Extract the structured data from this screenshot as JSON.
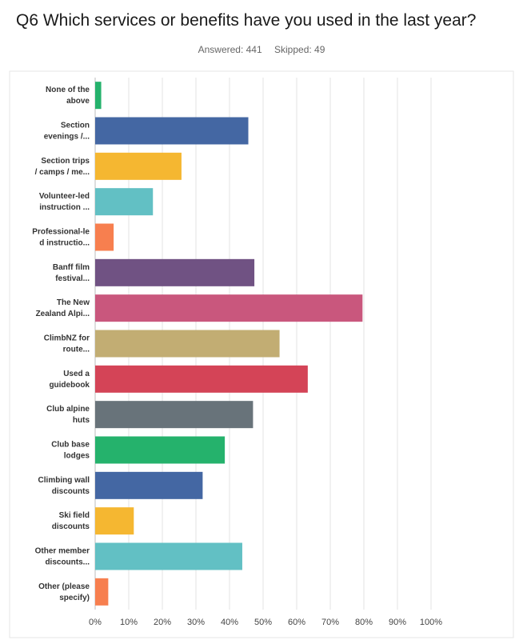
{
  "title": "Q6 Which services or benefits have you used in the last year?",
  "answered_label": "Answered: 441",
  "skipped_label": "Skipped: 49",
  "chart_data": {
    "type": "bar",
    "orientation": "horizontal",
    "title": "Q6 Which services or benefits have you used in the last year?",
    "xlabel": "",
    "ylabel": "",
    "xlim": [
      0,
      100
    ],
    "x_ticks": [
      "0%",
      "10%",
      "20%",
      "30%",
      "40%",
      "50%",
      "60%",
      "70%",
      "80%",
      "90%",
      "100%"
    ],
    "grid": true,
    "categories": [
      [
        "None of the",
        "above"
      ],
      [
        "Section",
        "evenings /..."
      ],
      [
        "Section trips",
        "/ camps / me..."
      ],
      [
        "Volunteer-led",
        "instruction ..."
      ],
      [
        "Professional-le",
        "d instructio..."
      ],
      [
        "Banff film",
        "festival..."
      ],
      [
        "The New",
        "Zealand Alpi..."
      ],
      [
        "ClimbNZ for",
        "route..."
      ],
      [
        "Used a",
        "guidebook"
      ],
      [
        "Club alpine",
        "huts"
      ],
      [
        "Club base",
        "lodges"
      ],
      [
        "Climbing wall",
        "discounts"
      ],
      [
        "Ski field",
        "discounts"
      ],
      [
        "Other member",
        "discounts..."
      ],
      [
        "Other (please",
        "specify)"
      ]
    ],
    "values": [
      1.8,
      45.6,
      25.7,
      17.2,
      5.5,
      47.4,
      79.6,
      54.9,
      63.3,
      47.0,
      38.6,
      32.0,
      11.5,
      43.8,
      3.9
    ],
    "colors": [
      "#25b26c",
      "#4467a3",
      "#f5b731",
      "#62c0c4",
      "#f77f4f",
      "#705283",
      "#c9577d",
      "#c2ad73",
      "#d44457",
      "#68737a",
      "#25b26c",
      "#4467a3",
      "#f5b731",
      "#62c0c4",
      "#f77f4f"
    ]
  }
}
